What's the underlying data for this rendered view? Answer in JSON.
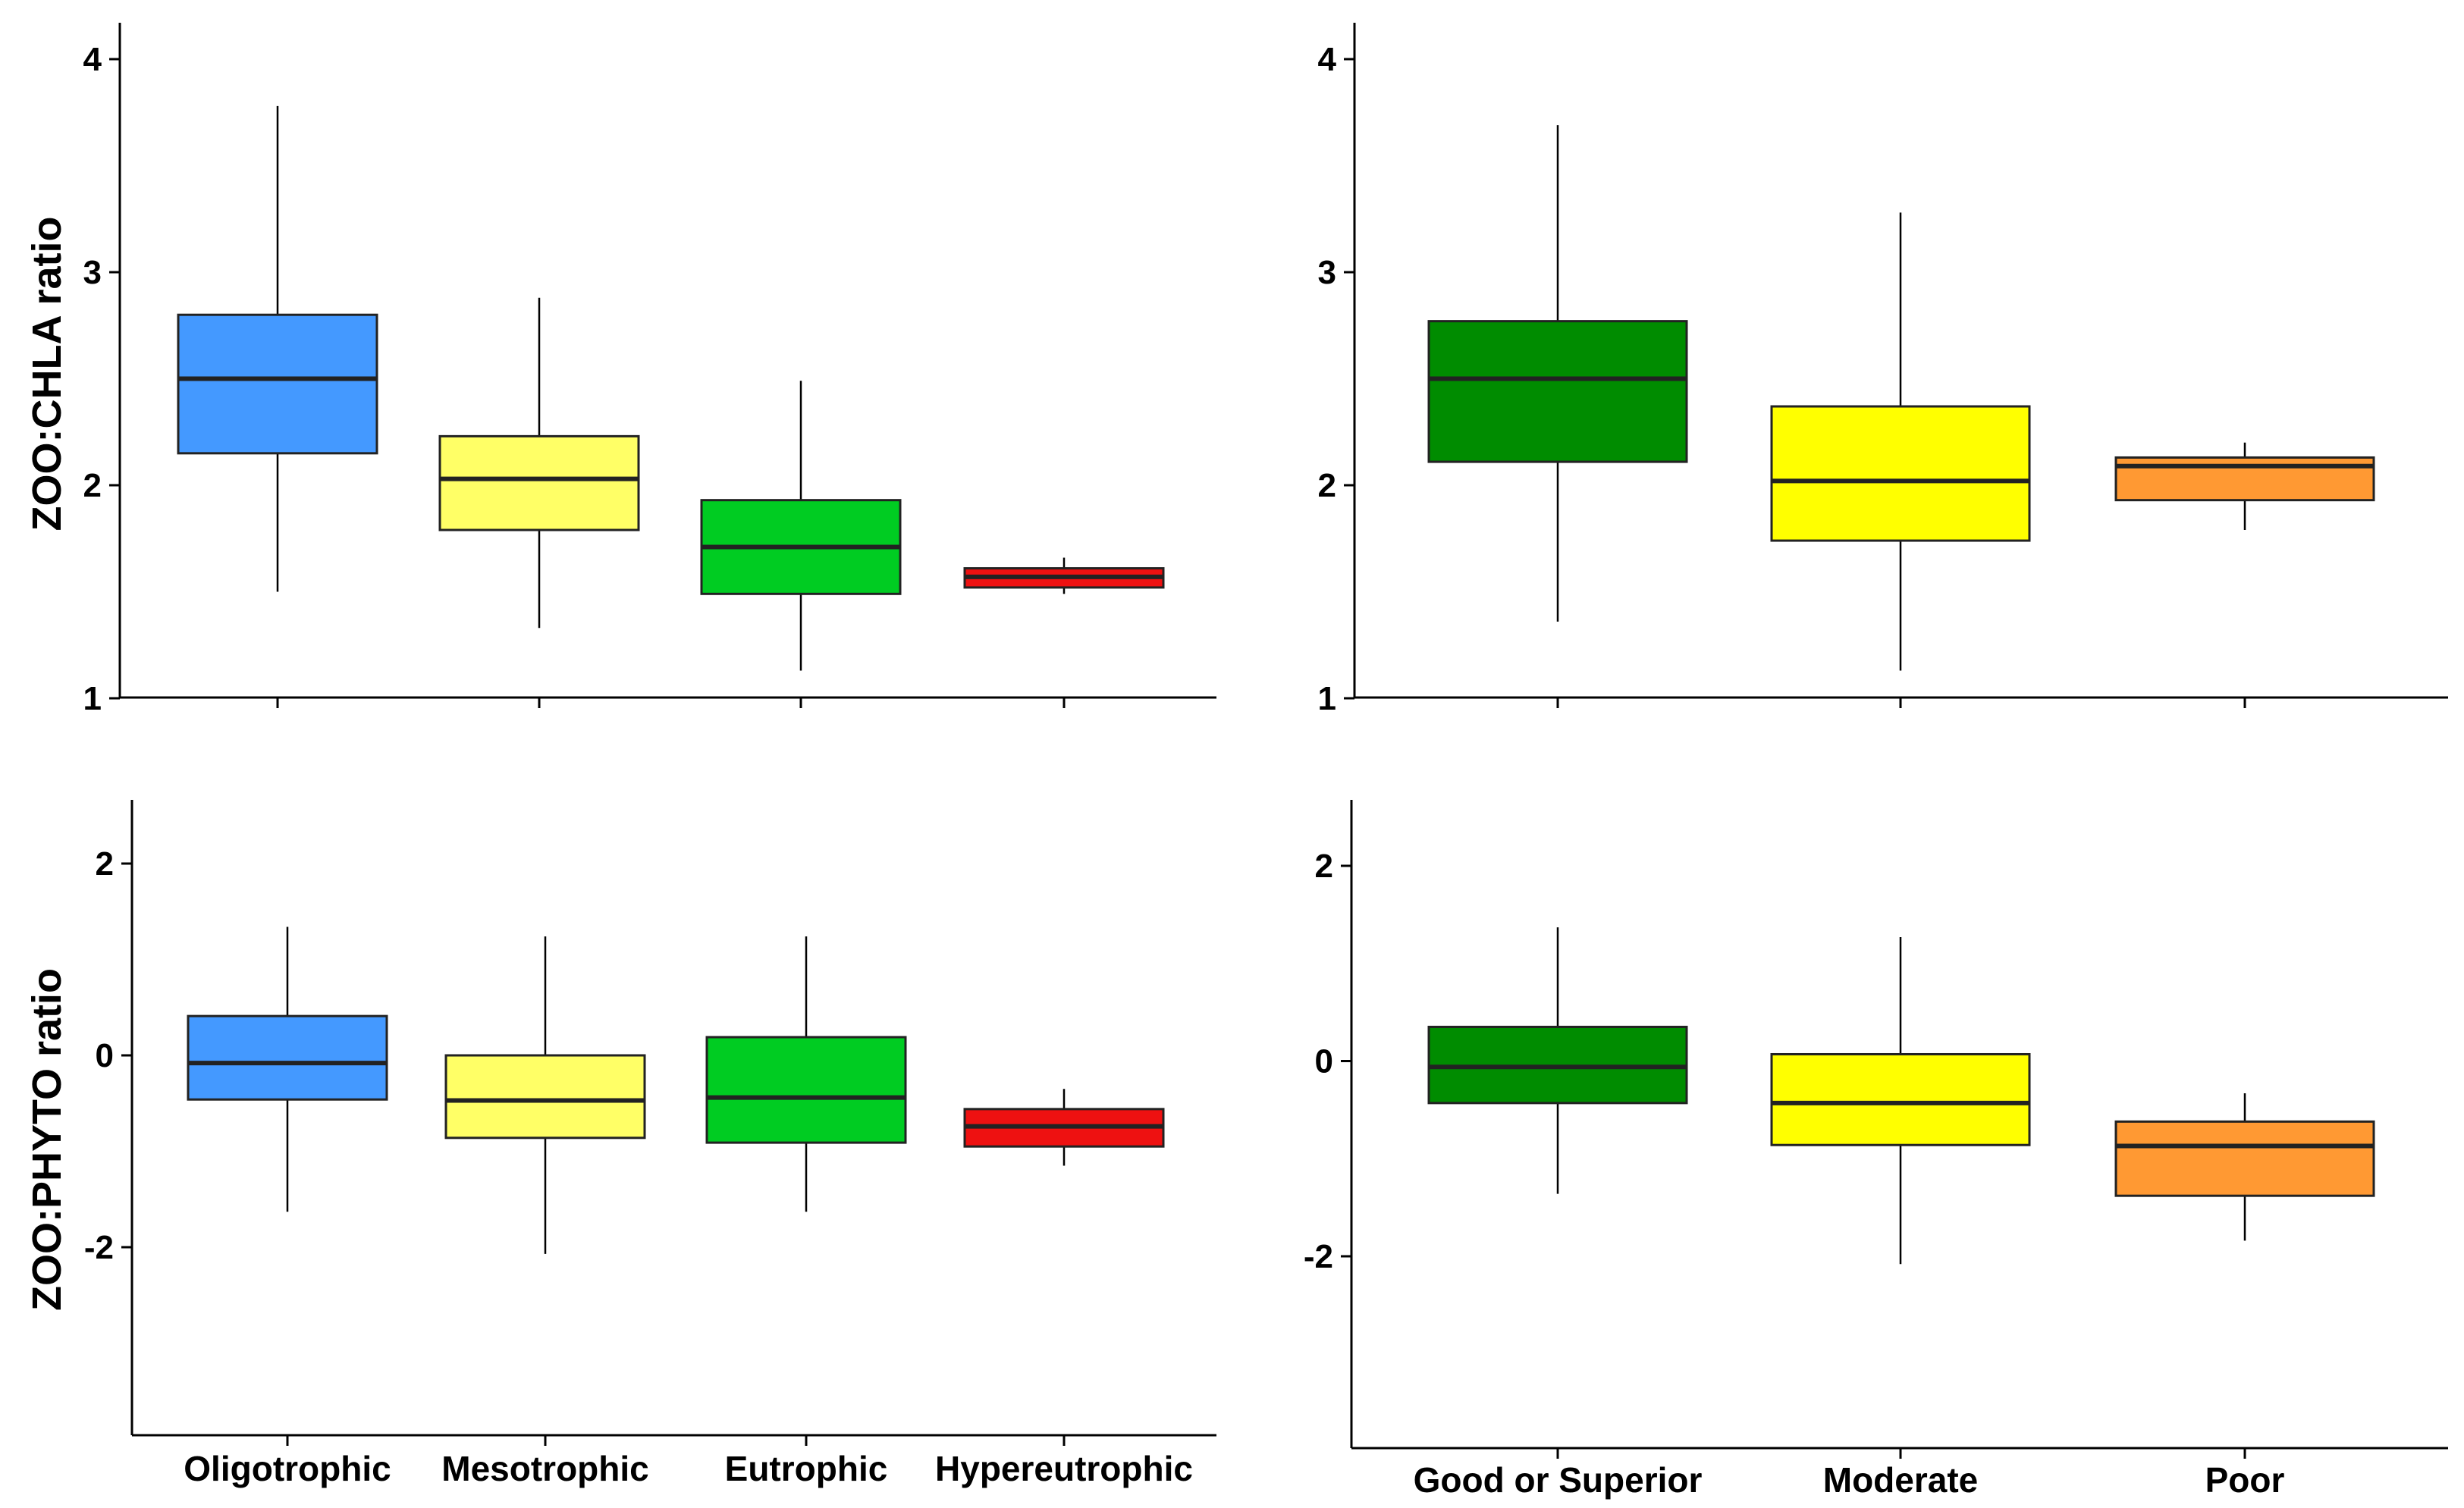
{
  "chart_data": [
    {
      "type": "box",
      "ylabel": "ZOO:CHLA ratio",
      "ylim": [
        1,
        4
      ],
      "yticks": [
        1,
        2,
        3,
        4
      ],
      "categories": [
        "Oligotrophic",
        "Mesotrophic",
        "Eutrophic",
        "Hypereutrophic"
      ],
      "colors": [
        "#4499ff",
        "#ffff66",
        "#00cc22",
        "#ee1111"
      ],
      "boxes": [
        {
          "whisker_low": 1.5,
          "q1": 2.15,
          "median": 2.5,
          "q3": 2.8,
          "whisker_high": 3.78
        },
        {
          "whisker_low": 1.33,
          "q1": 1.79,
          "median": 2.03,
          "q3": 2.23,
          "whisker_high": 2.88
        },
        {
          "whisker_low": 1.13,
          "q1": 1.49,
          "median": 1.71,
          "q3": 1.93,
          "whisker_high": 2.49
        },
        {
          "whisker_low": 1.49,
          "q1": 1.52,
          "median": 1.57,
          "q3": 1.61,
          "whisker_high": 1.66
        }
      ]
    },
    {
      "type": "box",
      "ylabel": "",
      "ylim": [
        1,
        4
      ],
      "yticks": [
        1,
        2,
        3,
        4
      ],
      "categories": [
        "Good or Superior",
        "Moderate",
        "Poor"
      ],
      "colors": [
        "#008c00",
        "#ffff00",
        "#ff9933"
      ],
      "boxes": [
        {
          "whisker_low": 1.36,
          "q1": 2.11,
          "median": 2.5,
          "q3": 2.77,
          "whisker_high": 3.69
        },
        {
          "whisker_low": 1.13,
          "q1": 1.74,
          "median": 2.02,
          "q3": 2.37,
          "whisker_high": 3.28
        },
        {
          "whisker_low": 1.79,
          "q1": 1.93,
          "median": 2.09,
          "q3": 2.13,
          "whisker_high": 2.2
        }
      ]
    },
    {
      "type": "box",
      "ylabel": "ZOO:PHYTO ratio",
      "ylim": [
        -4,
        2.7
      ],
      "yticks": [
        -2,
        0,
        2
      ],
      "categories": [
        "Oligotrophic",
        "Mesotrophic",
        "Eutrophic",
        "Hypereutrophic"
      ],
      "colors": [
        "#4499ff",
        "#ffff66",
        "#00cc22",
        "#ee1111"
      ],
      "boxes": [
        {
          "whisker_low": -1.63,
          "q1": -0.46,
          "median": -0.08,
          "q3": 0.41,
          "whisker_high": 1.34
        },
        {
          "whisker_low": -2.07,
          "q1": -0.86,
          "median": -0.47,
          "q3": 0.0,
          "whisker_high": 1.24
        },
        {
          "whisker_low": -1.63,
          "q1": -0.91,
          "median": -0.44,
          "q3": 0.19,
          "whisker_high": 1.24
        },
        {
          "whisker_low": -1.15,
          "q1": -0.95,
          "median": -0.74,
          "q3": -0.56,
          "whisker_high": -0.35
        }
      ]
    },
    {
      "type": "box",
      "ylabel": "",
      "ylim": [
        -4,
        2.7
      ],
      "yticks": [
        -2,
        0,
        2
      ],
      "categories": [
        "Good or Superior",
        "Moderate",
        "Poor"
      ],
      "colors": [
        "#008c00",
        "#ffff00",
        "#ff9933"
      ],
      "boxes": [
        {
          "whisker_low": -1.36,
          "q1": -0.43,
          "median": -0.06,
          "q3": 0.35,
          "whisker_high": 1.37
        },
        {
          "whisker_low": -2.08,
          "q1": -0.86,
          "median": -0.43,
          "q3": 0.07,
          "whisker_high": 1.27
        },
        {
          "whisker_low": -1.84,
          "q1": -1.38,
          "median": -0.87,
          "q3": -0.62,
          "whisker_high": -0.33
        }
      ]
    }
  ]
}
